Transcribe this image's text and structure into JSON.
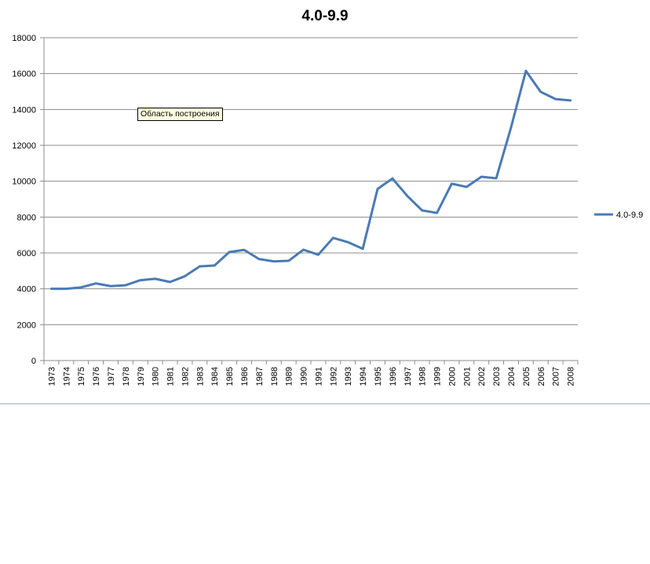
{
  "chart_data": {
    "type": "line",
    "title": "4.0-9.9",
    "xlabel": "",
    "ylabel": "",
    "ylim": [
      0,
      18000
    ],
    "yticks": [
      0,
      2000,
      4000,
      6000,
      8000,
      10000,
      12000,
      14000,
      16000,
      18000
    ],
    "grid": true,
    "legend_position": "right",
    "x": [
      "1973",
      "1974",
      "1975",
      "1976",
      "1977",
      "1978",
      "1979",
      "1980",
      "1981",
      "1982",
      "1983",
      "1984",
      "1985",
      "1986",
      "1987",
      "1988",
      "1989",
      "1990",
      "1991",
      "1992",
      "1993",
      "1994",
      "1995",
      "1996",
      "1997",
      "1998",
      "1999",
      "2000",
      "2001",
      "2002",
      "2003",
      "2004",
      "2005",
      "2006",
      "2007",
      "2008"
    ],
    "series": [
      {
        "name": "4.0-9.9",
        "color": "#4a7ab5",
        "values": [
          4000,
          4000,
          4080,
          4300,
          4150,
          4200,
          4480,
          4560,
          4380,
          4700,
          5250,
          5300,
          6050,
          6170,
          5660,
          5530,
          5560,
          6180,
          5900,
          6840,
          6600,
          6230,
          9570,
          10150,
          9180,
          8370,
          8230,
          9860,
          9680,
          10250,
          10160,
          13000,
          16150,
          14980,
          14580,
          14500
        ]
      }
    ]
  },
  "tooltip": {
    "text": "Область построения"
  }
}
